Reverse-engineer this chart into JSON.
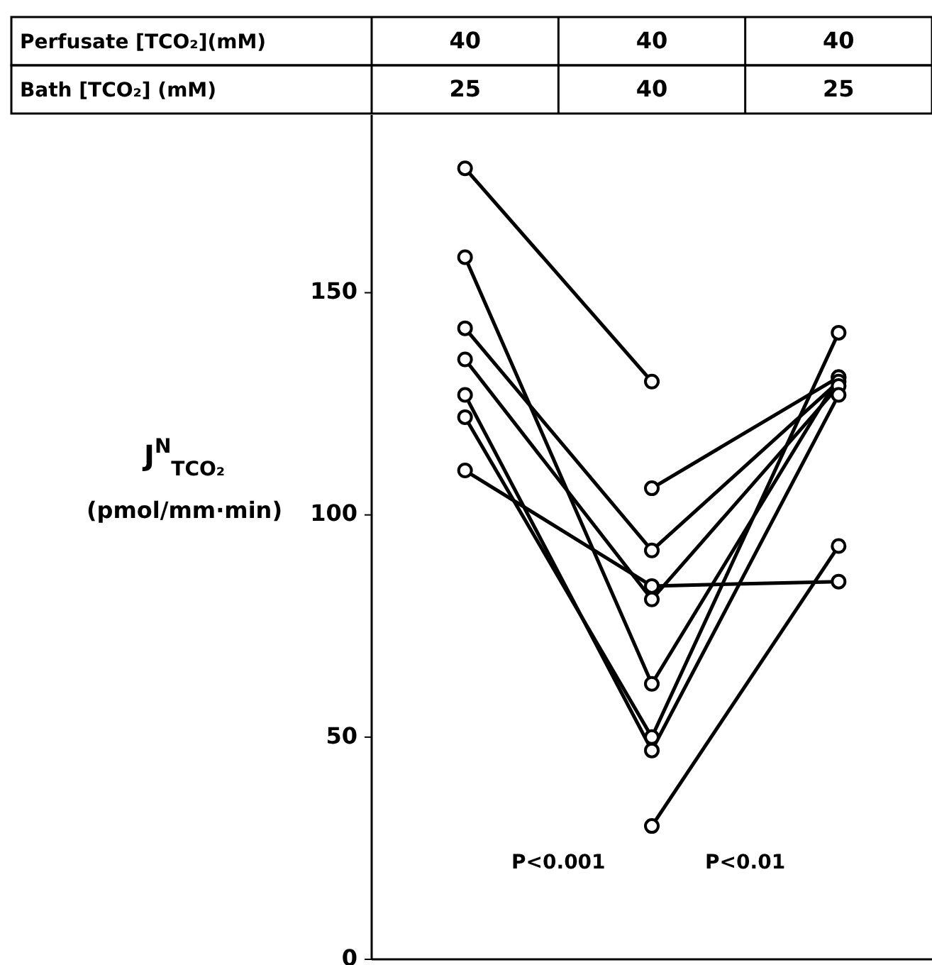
{
  "chart_data": {
    "type": "line",
    "categories": [
      null,
      null,
      null
    ],
    "ylabel": "J$^{N}$$_{TCO₂}$\n(pmol/mm·min)",
    "ylim": [
      0,
      190
    ],
    "yticks": [
      0,
      50,
      100,
      150
    ],
    "marker": "circle",
    "grid": false,
    "annotations": [
      "Perfusate [TCO₂](mM)",
      "40",
      "40",
      "40",
      "Bath [TCO₂] (mM)",
      "25",
      "40",
      "25",
      "P<0.001",
      "P<0.01"
    ],
    "series": [
      {
        "color": "#000000",
        "values": [
          null,
          106,
          131
        ]
      },
      {
        "color": "#000000",
        "values": [
          null,
          30,
          93
        ]
      },
      {
        "color": "#000000",
        "values": [
          178,
          130,
          null
        ]
      },
      {
        "color": "#000000",
        "values": [
          158,
          62,
          131
        ]
      },
      {
        "color": "#000000",
        "values": [
          142,
          92,
          130
        ]
      },
      {
        "color": "#000000",
        "values": [
          135,
          81,
          129
        ]
      },
      {
        "color": "#000000",
        "values": [
          127,
          47,
          127
        ]
      },
      {
        "color": "#000000",
        "values": [
          122,
          50,
          141
        ]
      },
      {
        "color": "#000000",
        "values": [
          110,
          84,
          85
        ]
      }
    ]
  }
}
